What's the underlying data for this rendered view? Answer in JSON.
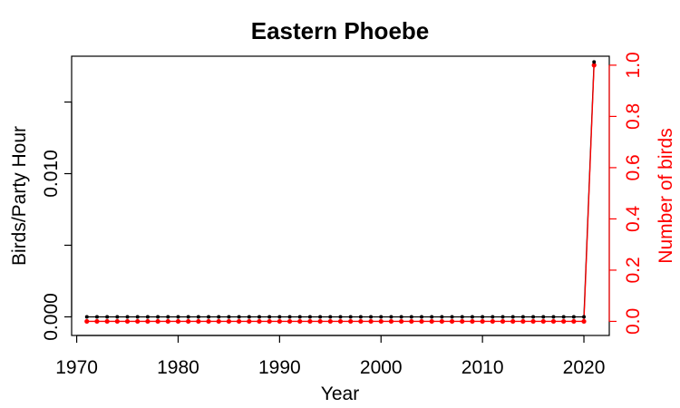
{
  "chart_data": {
    "type": "line",
    "title": "Eastern Phoebe",
    "xlabel": "Year",
    "ylabel_left": "Birds/Party Hour",
    "ylabel_right": "Number of birds",
    "xlim": [
      1969.5,
      2022.5
    ],
    "ylim_left": [
      -0.0013,
      0.0182
    ],
    "ylim_right": [
      -0.055,
      1.035
    ],
    "x_ticks": [
      1970,
      1980,
      1990,
      2000,
      2010,
      2020
    ],
    "x_tick_labels": [
      "1970",
      "1980",
      "1990",
      "2000",
      "2010",
      "2020"
    ],
    "y_left_ticks": [
      0,
      0.005,
      0.01,
      0.015
    ],
    "y_left_tick_labels": [
      "0.000",
      "",
      "0.010",
      ""
    ],
    "y_right_ticks": [
      0,
      0.2,
      0.4,
      0.6,
      0.8,
      1.0
    ],
    "y_right_tick_labels": [
      "0.0",
      "0.2",
      "0.4",
      "0.6",
      "0.8",
      "1.0"
    ],
    "grid": false,
    "colors": {
      "left_series": "#000000",
      "right_series": "#ff0000",
      "axis_right": "#ff0000"
    },
    "series": [
      {
        "axis": "left",
        "x": [
          1971,
          1972,
          1973,
          1974,
          1975,
          1976,
          1977,
          1978,
          1979,
          1980,
          1981,
          1982,
          1983,
          1984,
          1985,
          1986,
          1987,
          1988,
          1989,
          1990,
          1991,
          1992,
          1993,
          1994,
          1995,
          1996,
          1997,
          1998,
          1999,
          2000,
          2001,
          2002,
          2003,
          2004,
          2005,
          2006,
          2007,
          2008,
          2009,
          2010,
          2011,
          2012,
          2013,
          2014,
          2015,
          2016,
          2017,
          2018,
          2019,
          2020,
          2021
        ],
        "values": [
          0,
          0,
          0,
          0,
          0,
          0,
          0,
          0,
          0,
          0,
          0,
          0,
          0,
          0,
          0,
          0,
          0,
          0,
          0,
          0,
          0,
          0,
          0,
          0,
          0,
          0,
          0,
          0,
          0,
          0,
          0,
          0,
          0,
          0,
          0,
          0,
          0,
          0,
          0,
          0,
          0,
          0,
          0,
          0,
          0,
          0,
          0,
          0,
          0,
          0,
          0.0178
        ]
      },
      {
        "axis": "right",
        "x": [
          1971,
          1972,
          1973,
          1974,
          1975,
          1976,
          1977,
          1978,
          1979,
          1980,
          1981,
          1982,
          1983,
          1984,
          1985,
          1986,
          1987,
          1988,
          1989,
          1990,
          1991,
          1992,
          1993,
          1994,
          1995,
          1996,
          1997,
          1998,
          1999,
          2000,
          2001,
          2002,
          2003,
          2004,
          2005,
          2006,
          2007,
          2008,
          2009,
          2010,
          2011,
          2012,
          2013,
          2014,
          2015,
          2016,
          2017,
          2018,
          2019,
          2020,
          2021
        ],
        "values": [
          0,
          0,
          0,
          0,
          0,
          0,
          0,
          0,
          0,
          0,
          0,
          0,
          0,
          0,
          0,
          0,
          0,
          0,
          0,
          0,
          0,
          0,
          0,
          0,
          0,
          0,
          0,
          0,
          0,
          0,
          0,
          0,
          0,
          0,
          0,
          0,
          0,
          0,
          0,
          0,
          0,
          0,
          0,
          0,
          0,
          0,
          0,
          0,
          0,
          0,
          1
        ]
      }
    ]
  }
}
